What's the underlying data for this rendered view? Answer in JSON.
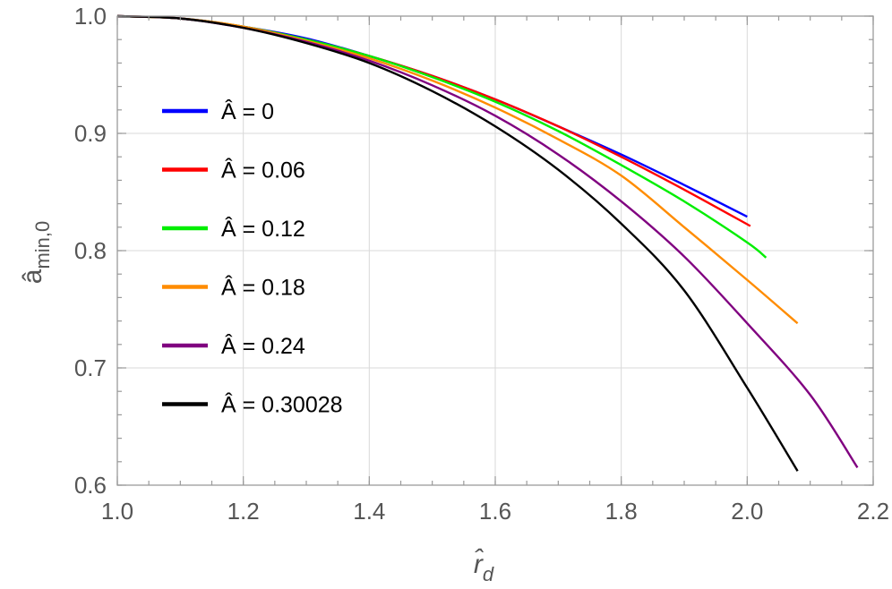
{
  "chart_data": {
    "type": "line",
    "title": "",
    "xlabel": "r̂",
    "xlabel_sub": "d",
    "ylabel": "â",
    "ylabel_sub": "min,0",
    "xlim": [
      1.0,
      2.2
    ],
    "ylim": [
      0.6,
      1.0
    ],
    "xticks_major": [
      "1.0",
      "1.2",
      "1.4",
      "1.6",
      "1.8",
      "2.0",
      "2.2"
    ],
    "yticks_major": [
      "0.6",
      "0.7",
      "0.8",
      "0.9",
      "1.0"
    ],
    "grid": true,
    "legend_position": "left",
    "series": [
      {
        "name": "Â = 0",
        "color": "#0000ff",
        "x": [
          1.0,
          1.1,
          1.2,
          1.3,
          1.4,
          1.5,
          1.6,
          1.7,
          1.8,
          1.9,
          2.0
        ],
        "y": [
          1.0,
          0.998,
          0.991,
          0.981,
          0.966,
          0.949,
          0.929,
          0.906,
          0.882,
          0.856,
          0.829
        ]
      },
      {
        "name": "Â = 0.06",
        "color": "#ff0000",
        "x": [
          1.0,
          1.1,
          1.2,
          1.3,
          1.4,
          1.5,
          1.6,
          1.7,
          1.8,
          1.9,
          2.005
        ],
        "y": [
          1.0,
          0.998,
          0.991,
          0.98,
          0.966,
          0.949,
          0.929,
          0.906,
          0.88,
          0.852,
          0.821
        ]
      },
      {
        "name": "Â = 0.12",
        "color": "#00ee00",
        "x": [
          1.0,
          1.1,
          1.2,
          1.3,
          1.4,
          1.5,
          1.6,
          1.7,
          1.8,
          1.9,
          2.0,
          2.03
        ],
        "y": [
          1.0,
          0.998,
          0.991,
          0.98,
          0.966,
          0.948,
          0.927,
          0.902,
          0.873,
          0.842,
          0.807,
          0.794
        ]
      },
      {
        "name": "Â = 0.18",
        "color": "#ff8c00",
        "x": [
          1.0,
          1.1,
          1.2,
          1.3,
          1.4,
          1.5,
          1.6,
          1.7,
          1.8,
          1.9,
          2.0,
          2.08
        ],
        "y": [
          1.0,
          0.998,
          0.991,
          0.979,
          0.964,
          0.945,
          0.922,
          0.895,
          0.864,
          0.82,
          0.775,
          0.738
        ]
      },
      {
        "name": "Â = 0.24",
        "color": "#800080",
        "x": [
          1.0,
          1.1,
          1.2,
          1.3,
          1.4,
          1.5,
          1.6,
          1.7,
          1.8,
          1.9,
          2.0,
          2.1,
          2.175
        ],
        "y": [
          1.0,
          0.998,
          0.99,
          0.978,
          0.962,
          0.941,
          0.915,
          0.882,
          0.842,
          0.795,
          0.738,
          0.677,
          0.615
        ]
      },
      {
        "name": "Â = 0.30028",
        "color": "#000000",
        "x": [
          1.0,
          1.1,
          1.2,
          1.3,
          1.4,
          1.5,
          1.6,
          1.7,
          1.8,
          1.9,
          2.0,
          2.08
        ],
        "y": [
          1.0,
          0.998,
          0.99,
          0.977,
          0.96,
          0.936,
          0.906,
          0.869,
          0.823,
          0.766,
          0.683,
          0.612
        ]
      }
    ]
  }
}
